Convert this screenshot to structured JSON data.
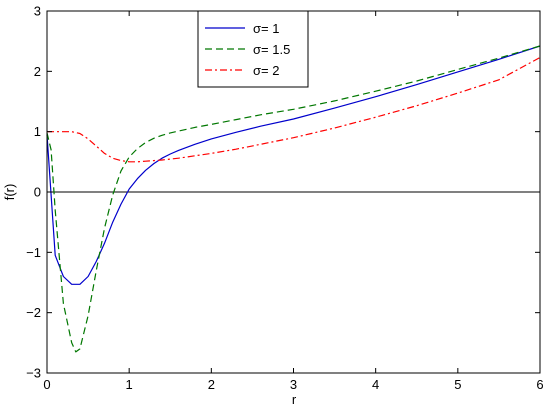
{
  "chart_data": {
    "type": "line",
    "title": "",
    "xlabel": "r",
    "ylabel": "f(r)",
    "xlim": [
      0,
      6
    ],
    "ylim": [
      -3,
      3
    ],
    "xticks": [
      0,
      1,
      2,
      3,
      4,
      5,
      6
    ],
    "yticks": [
      -3,
      -2,
      -1,
      0,
      1,
      2,
      3
    ],
    "xtick_labels": [
      "0",
      "1",
      "2",
      "3",
      "4",
      "5",
      "6"
    ],
    "ytick_labels": [
      "−3",
      "−2",
      "−1",
      "0",
      "1",
      "2",
      "3"
    ],
    "grid": false,
    "legend_position": "top-center",
    "reference_line_y": 0,
    "series": [
      {
        "name": "σ= 1",
        "color": "#0000cc",
        "dash": "solid",
        "x": [
          0.0,
          0.1,
          0.2,
          0.3,
          0.4,
          0.5,
          0.6,
          0.7,
          0.8,
          0.9,
          1.0,
          1.1,
          1.2,
          1.3,
          1.4,
          1.5,
          1.6,
          1.8,
          2.0,
          2.3,
          2.6,
          3.0,
          3.5,
          4.0,
          4.5,
          5.0,
          5.5,
          6.0
        ],
        "y": [
          0.95,
          -1.05,
          -1.4,
          -1.53,
          -1.53,
          -1.4,
          -1.15,
          -0.85,
          -0.5,
          -0.2,
          0.05,
          0.22,
          0.36,
          0.47,
          0.56,
          0.63,
          0.69,
          0.79,
          0.88,
          0.99,
          1.09,
          1.21,
          1.39,
          1.58,
          1.78,
          1.99,
          2.2,
          2.42
        ]
      },
      {
        "name": "σ= 1.5",
        "color": "#007700",
        "dash": "dashed",
        "x": [
          0.0,
          0.05,
          0.1,
          0.2,
          0.3,
          0.35,
          0.4,
          0.5,
          0.6,
          0.7,
          0.8,
          0.9,
          1.0,
          1.1,
          1.2,
          1.3,
          1.4,
          1.5,
          1.6,
          1.8,
          2.0,
          2.3,
          2.6,
          3.0,
          3.5,
          4.0,
          4.5,
          5.0,
          5.5,
          6.0
        ],
        "y": [
          0.98,
          0.7,
          -0.3,
          -1.85,
          -2.5,
          -2.65,
          -2.6,
          -2.05,
          -1.3,
          -0.6,
          -0.05,
          0.35,
          0.58,
          0.72,
          0.82,
          0.89,
          0.94,
          0.98,
          1.01,
          1.07,
          1.12,
          1.2,
          1.28,
          1.37,
          1.51,
          1.67,
          1.84,
          2.03,
          2.22,
          2.42
        ]
      },
      {
        "name": "σ= 2",
        "color": "#ff0000",
        "dash": "dashdot",
        "x": [
          0.0,
          0.1,
          0.2,
          0.3,
          0.4,
          0.5,
          0.6,
          0.7,
          0.8,
          0.9,
          1.0,
          1.1,
          1.2,
          1.3,
          1.4,
          1.6,
          1.8,
          2.0,
          2.3,
          2.6,
          3.0,
          3.5,
          4.0,
          4.5,
          5.0,
          5.5,
          6.0
        ],
        "y": [
          1.0,
          1.0,
          1.0,
          1.0,
          0.97,
          0.88,
          0.76,
          0.64,
          0.56,
          0.52,
          0.5,
          0.5,
          0.51,
          0.52,
          0.53,
          0.56,
          0.6,
          0.64,
          0.71,
          0.79,
          0.9,
          1.06,
          1.24,
          1.43,
          1.64,
          1.86,
          2.23
        ]
      }
    ]
  }
}
